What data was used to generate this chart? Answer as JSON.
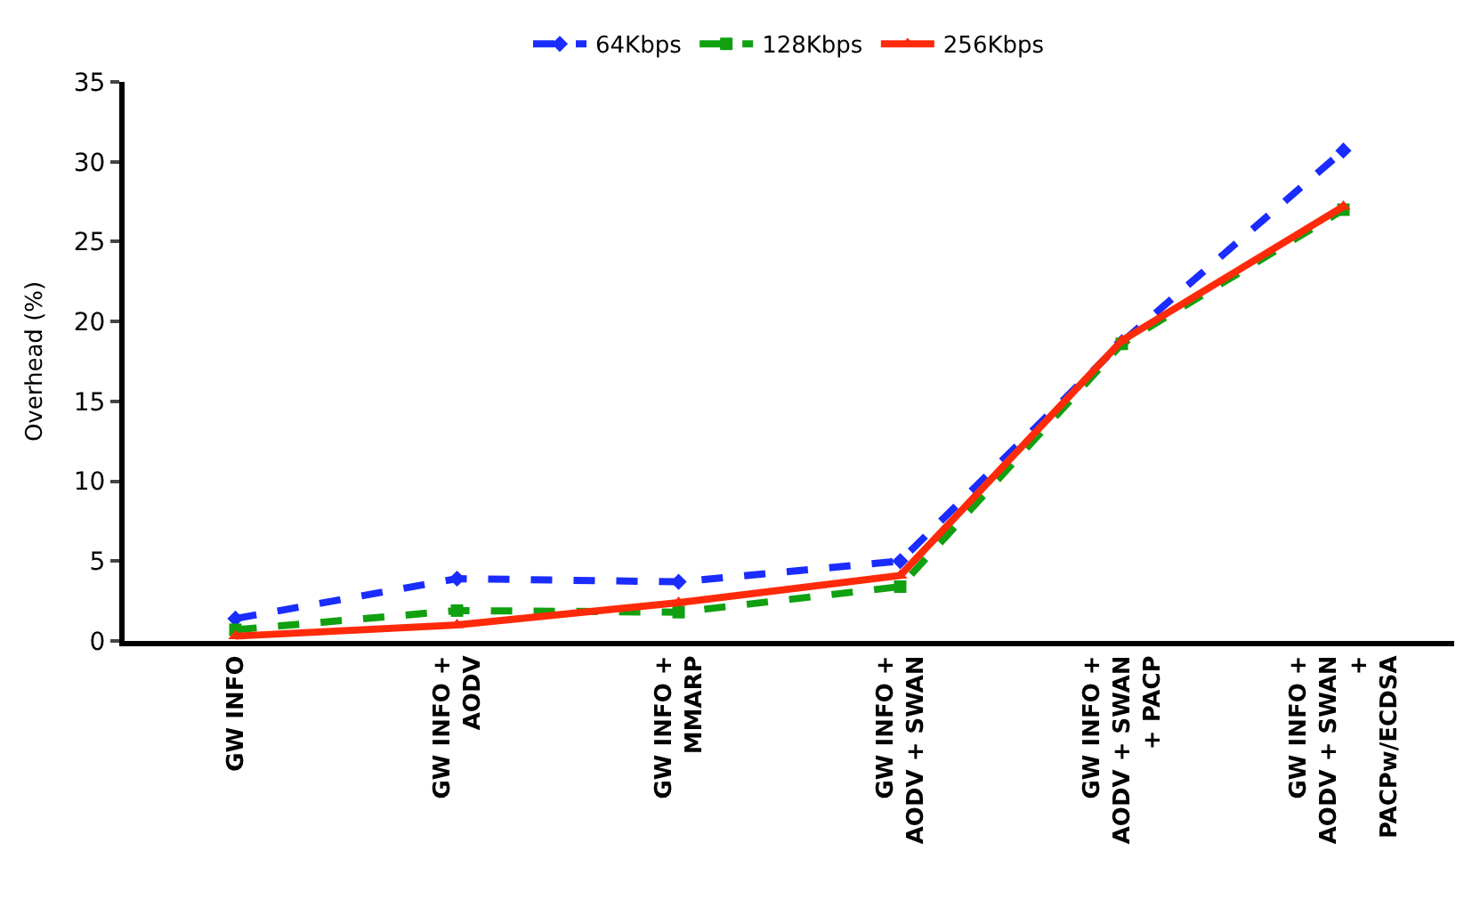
{
  "chart_data": {
    "type": "line",
    "ylabel": "Overhead (%)",
    "categories": [
      "GW INFO",
      "GW INFO +\nAODV",
      "GW INFO +\nMMARP",
      "GW INFO +\nAODV + SWAN",
      "GW INFO +\nAODV + SWAN\n+ PACP",
      "GW INFO +\nAODV + SWAN\n+\nPACPw/ECDSA"
    ],
    "series": [
      {
        "name": "64Kbps",
        "color": "#1a2cff",
        "line_style": "dashed",
        "marker": "diamond",
        "values": [
          1.4,
          3.9,
          3.7,
          5.0,
          18.7,
          30.7
        ]
      },
      {
        "name": "128Kbps",
        "color": "#10a010",
        "line_style": "dashed",
        "marker": "square",
        "values": [
          0.7,
          1.9,
          1.8,
          3.4,
          18.6,
          27.0
        ]
      },
      {
        "name": "256Kbps",
        "color": "#ff2a0a",
        "line_style": "solid",
        "marker": "triangle",
        "values": [
          0.3,
          1.0,
          2.4,
          4.1,
          18.8,
          27.2
        ]
      }
    ],
    "ylim": [
      0,
      35
    ],
    "yticks": [
      0,
      5,
      10,
      15,
      20,
      25,
      30,
      35
    ],
    "legend": "top"
  }
}
